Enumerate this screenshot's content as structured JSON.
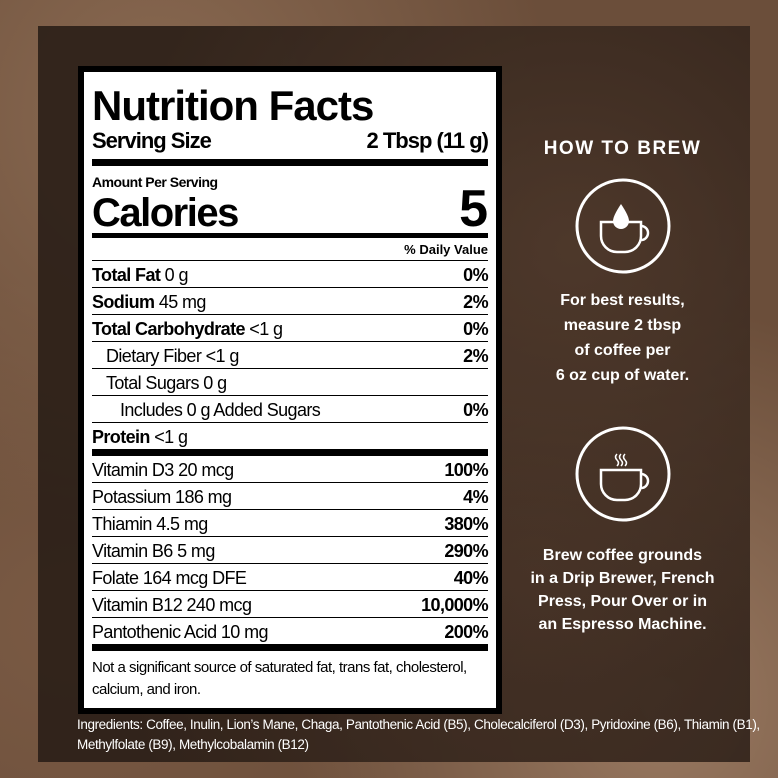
{
  "label": {
    "title": "Nutrition Facts",
    "serving_size_label": "Serving Size",
    "serving_size_value": "2 Tbsp (11 g)",
    "amount_per_serving": "Amount Per Serving",
    "calories_label": "Calories",
    "calories_value": "5",
    "daily_value_header": "% Daily Value",
    "nutrients": [
      {
        "name": "Total Fat",
        "amount": "0 g",
        "dv": "0%"
      },
      {
        "name": "Sodium",
        "amount": "45 mg",
        "dv": "2%"
      },
      {
        "name": "Total Carbohydrate",
        "amount": "<1 g",
        "dv": "0%"
      },
      {
        "name": "Dietary Fiber",
        "amount": "<1 g",
        "dv": "2%"
      },
      {
        "name": "Total Sugars",
        "amount": "0 g",
        "dv": ""
      },
      {
        "name": "Includes 0 g Added Sugars",
        "amount": "",
        "dv": "0%"
      },
      {
        "name": "Protein",
        "amount": "<1 g",
        "dv": ""
      }
    ],
    "vitamins": [
      {
        "text": "Vitamin D3 20 mcg",
        "dv": "100%"
      },
      {
        "text": "Potassium 186 mg",
        "dv": "4%"
      },
      {
        "text": "Thiamin 4.5 mg",
        "dv": "380%"
      },
      {
        "text": "Vitamin B6 5 mg",
        "dv": "290%"
      },
      {
        "text": "Folate 164 mcg DFE",
        "dv": "40%"
      },
      {
        "text": "Vitamin B12 240 mcg",
        "dv": "10,000%"
      },
      {
        "text": "Pantothenic Acid 10 mg",
        "dv": "200%"
      }
    ],
    "footnote": "Not a significant source of saturated fat, trans fat, cholesterol, calcium, and iron."
  },
  "ingredients": "Ingredients: Coffee, Inulin, Lion’s Mane, Chaga, Pantothenic Acid (B5), Cholecalciferol (D3), Pyridoxine (B6), Thiamin (B1), Methylfolate (B9), Methylcobalamin (B12)",
  "brew": {
    "title": "HOW TO BREW",
    "step1_icon": "water-drop-cup-icon",
    "step1_lines": [
      "For best results,",
      "measure 2 tbsp",
      "of coffee per",
      "6 oz cup of water."
    ],
    "step2_icon": "steaming-cup-icon",
    "step2_lines": [
      "Brew coffee grounds",
      "in a Drip Brewer, French",
      "Press, Pour Over or in",
      "an Espresso Machine."
    ]
  }
}
